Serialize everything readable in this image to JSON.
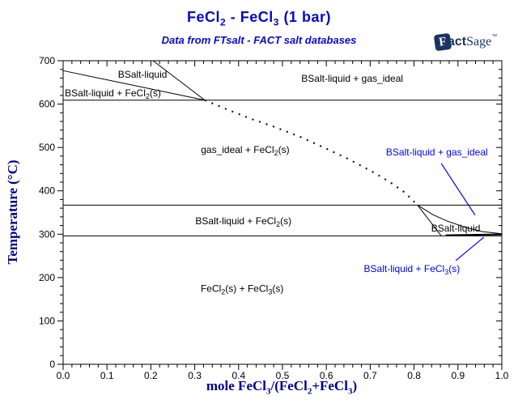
{
  "header": {
    "title_parts": {
      "p1": "FeCl",
      "s1": "2",
      "p2": " - FeCl",
      "s2": "3",
      "p3": "  (1 bar)"
    },
    "subtitle": "Data from FTsalt - FACT salt databases",
    "logo": {
      "f": "F",
      "act": "act",
      "sage": "Sage",
      "tm": "™"
    }
  },
  "colors": {
    "title_blue": "#0808c8",
    "axis_label_navy": "#00008b",
    "annotation_blue": "#0000ee",
    "line_black": "#000000",
    "logo_navy": "#1d3461"
  },
  "axes": {
    "x": {
      "label_parts": {
        "m1": "mole FeCl",
        "m2": "3",
        "m3": "/(FeCl",
        "m4": "2",
        "m5": "+FeCl",
        "m6": "3",
        "m7": ")"
      },
      "tick_labels": [
        "0.0",
        "0.1",
        "0.2",
        "0.3",
        "0.4",
        "0.5",
        "0.6",
        "0.7",
        "0.8",
        "0.9",
        "1.0"
      ]
    },
    "y": {
      "label": "Temperature (°C)",
      "tick_labels": [
        "0",
        "100",
        "200",
        "300",
        "400",
        "500",
        "600",
        "700"
      ]
    }
  },
  "chart_data": {
    "type": "line",
    "kind": "binary-phase-diagram",
    "title": "FeCl2 - FeCl3 (1 bar)",
    "subtitle": "Data from FTsalt - FACT salt databases",
    "xlabel": "mole FeCl3/(FeCl2+FeCl3)",
    "ylabel": "Temperature (C)",
    "xlim": [
      0,
      1
    ],
    "ylim": [
      0,
      700
    ],
    "x_major_step": 0.1,
    "x_minor_step": 0.02,
    "y_major_step": 100,
    "y_minor_step": 20,
    "grid": false,
    "boundaries": [
      {
        "name": "isotherm-609C",
        "style": "solid",
        "width": 1,
        "points": [
          [
            0,
            609
          ],
          [
            1,
            609
          ]
        ]
      },
      {
        "name": "isotherm-367C",
        "style": "solid",
        "width": 1,
        "points": [
          [
            0,
            367
          ],
          [
            1,
            367
          ]
        ]
      },
      {
        "name": "isotherm-296C",
        "style": "solid",
        "width": 1,
        "points": [
          [
            0,
            296
          ],
          [
            1,
            296
          ]
        ]
      },
      {
        "name": "fecl2-liquidus",
        "style": "solid",
        "width": 1,
        "points": [
          [
            0,
            677
          ],
          [
            0.323,
            609
          ]
        ]
      },
      {
        "name": "gas-appearance-line",
        "style": "solid",
        "width": 1,
        "points": [
          [
            0.205,
            700
          ],
          [
            0.323,
            609
          ]
        ]
      },
      {
        "name": "gas-liquid-boundary-dotted",
        "style": "dotted",
        "width": 2,
        "points": [
          [
            0.323,
            609
          ],
          [
            0.373,
            588
          ],
          [
            0.428,
            566
          ],
          [
            0.483,
            547
          ],
          [
            0.539,
            525
          ],
          [
            0.594,
            500
          ],
          [
            0.649,
            474
          ],
          [
            0.705,
            444
          ],
          [
            0.742,
            422
          ],
          [
            0.779,
            396
          ],
          [
            0.808,
            367
          ]
        ]
      },
      {
        "name": "liquid-dome-left",
        "style": "solid",
        "width": 1,
        "points": [
          [
            0.808,
            367
          ],
          [
            0.862,
            296
          ]
        ]
      },
      {
        "name": "liquid-dome-upper",
        "style": "solid",
        "width": 1,
        "points": [
          [
            0.808,
            367
          ],
          [
            0.843,
            345
          ],
          [
            0.876,
            330
          ],
          [
            0.919,
            315
          ],
          [
            0.956,
            306
          ],
          [
            1.0,
            301
          ]
        ]
      },
      {
        "name": "fecl3-liquidus",
        "style": "solid",
        "width": 2,
        "points": [
          [
            0.872,
            297.5
          ],
          [
            1.0,
            299.5
          ]
        ]
      }
    ],
    "region_labels": [
      {
        "name": "bsalt-liquid-top",
        "color": "black",
        "x": 0.181,
        "t": 668,
        "anchor": "middle",
        "parts": [
          [
            "BSalt-liquid",
            0
          ]
        ]
      },
      {
        "name": "bsalt-liquid-fecl2s-upper",
        "color": "black",
        "x": 0.004,
        "t": 625,
        "anchor": "start",
        "parts": [
          [
            "BSalt-liquid + FeCl",
            0
          ],
          [
            "2",
            1
          ],
          [
            "(s)",
            0
          ]
        ]
      },
      {
        "name": "bsalt-liquid-gas-ideal-top",
        "color": "black",
        "x": 0.659,
        "t": 659,
        "anchor": "middle",
        "parts": [
          [
            "BSalt-liquid + gas_ideal",
            0
          ]
        ]
      },
      {
        "name": "gas-ideal-fecl2s",
        "color": "black",
        "x": 0.415,
        "t": 495,
        "anchor": "middle",
        "parts": [
          [
            "gas_ideal + FeCl",
            0
          ],
          [
            "2",
            1
          ],
          [
            "(s)",
            0
          ]
        ]
      },
      {
        "name": "bsalt-liquid-gas-ideal-annotation",
        "color": "blue",
        "x": 0.852,
        "t": 489,
        "anchor": "middle",
        "parts": [
          [
            "BSalt-liquid + gas_ideal",
            0
          ]
        ]
      },
      {
        "name": "bsalt-liquid-fecl2s-mid",
        "color": "black",
        "x": 0.411,
        "t": 330,
        "anchor": "middle",
        "parts": [
          [
            "BSalt-liquid + FeCl",
            0
          ],
          [
            "2",
            1
          ],
          [
            "(s)",
            0
          ]
        ]
      },
      {
        "name": "bsalt-liquid-right",
        "color": "black",
        "x": 0.895,
        "t": 314,
        "anchor": "middle",
        "parts": [
          [
            "BSalt-liquid",
            0
          ]
        ]
      },
      {
        "name": "bsalt-liquid-fecl3s-annotation",
        "color": "blue",
        "x": 0.795,
        "t": 220,
        "anchor": "middle",
        "parts": [
          [
            "BSalt-liquid + FeCl",
            0
          ],
          [
            "3",
            1
          ],
          [
            "(s)",
            0
          ]
        ]
      },
      {
        "name": "fecl2s-fecl3s",
        "color": "black",
        "x": 0.408,
        "t": 175,
        "anchor": "middle",
        "parts": [
          [
            "FeCl",
            0
          ],
          [
            "2",
            1
          ],
          [
            "(s) + FeCl",
            0
          ],
          [
            "3",
            1
          ],
          [
            "(s)",
            0
          ]
        ]
      }
    ],
    "leader_lines": [
      {
        "name": "leader-to-gas-ideal-region",
        "points": [
          [
            0.862,
            463
          ],
          [
            0.939,
            344
          ]
        ]
      },
      {
        "name": "leader-to-fecl3s-sliver",
        "points": [
          [
            0.895,
            239
          ],
          [
            0.959,
            293
          ]
        ]
      }
    ]
  }
}
